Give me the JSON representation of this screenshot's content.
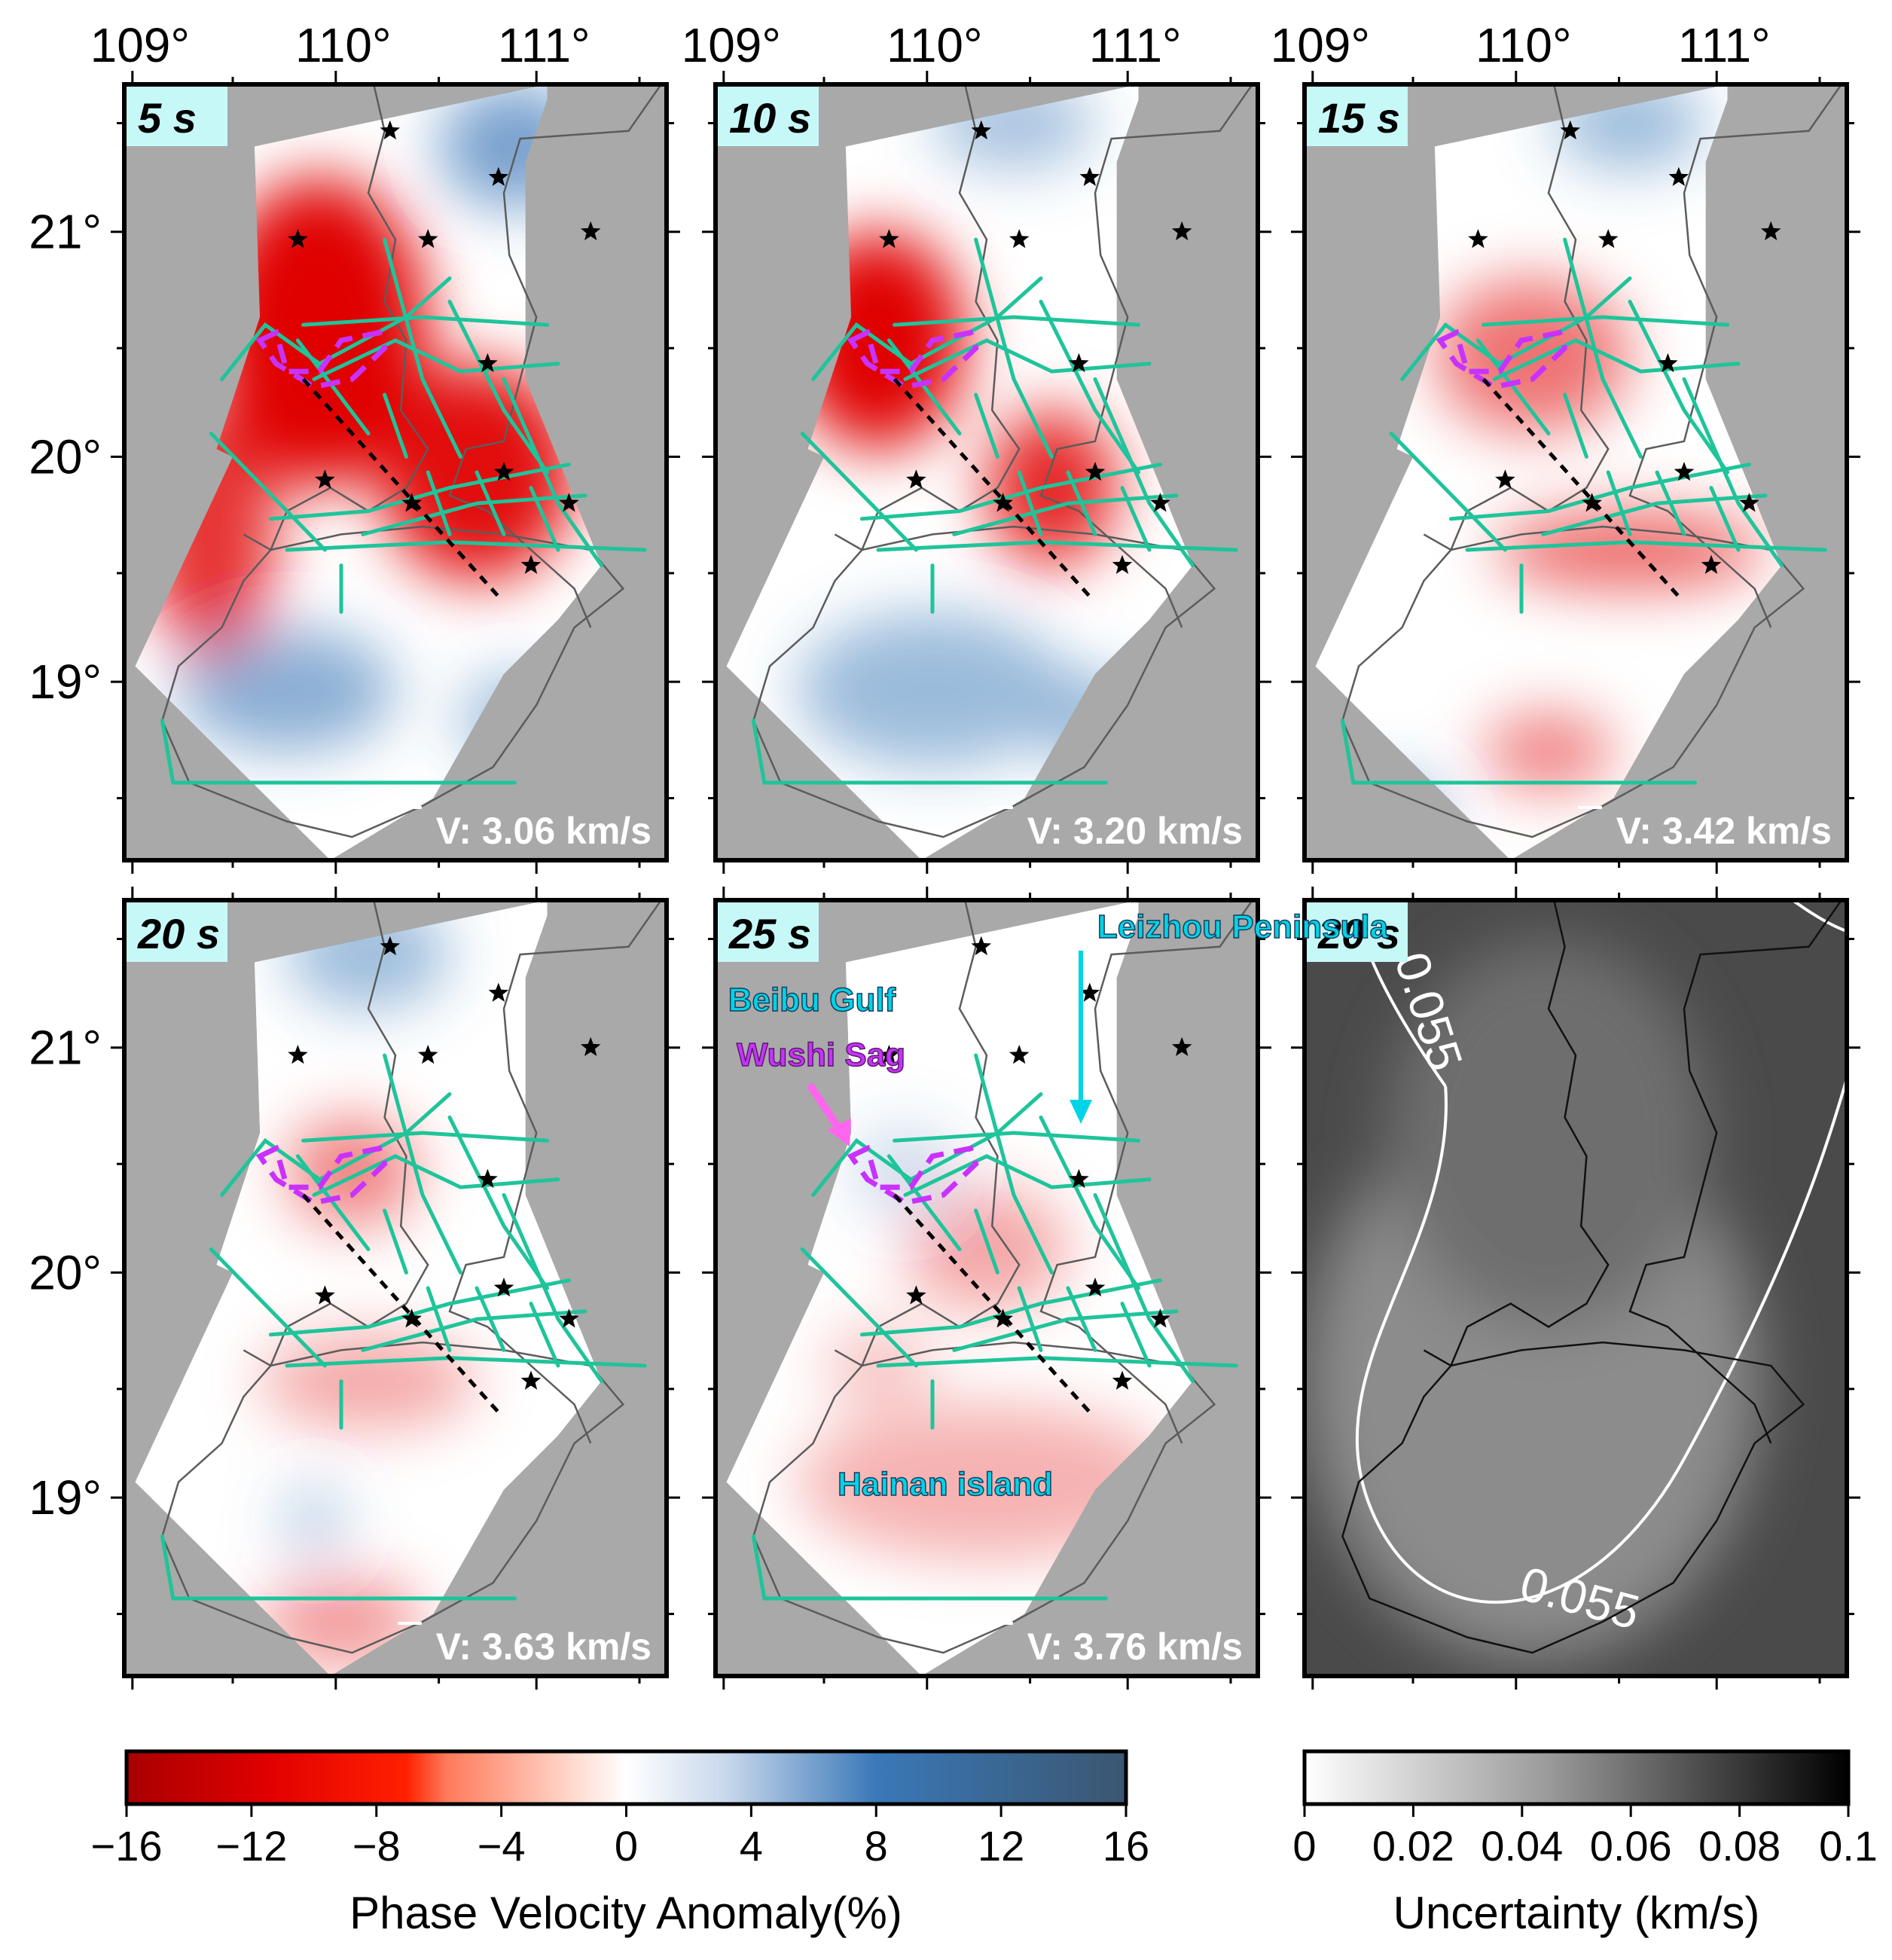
{
  "lon_ticks": [
    "109°",
    "110°",
    "111°"
  ],
  "lat_ticks": [
    "21°",
    "20°",
    "19°"
  ],
  "panels": [
    {
      "id": "p5",
      "period": "5 s",
      "mean_velocity": "V: 3.06 km/s",
      "map_type": "anomaly"
    },
    {
      "id": "p10",
      "period": "10 s",
      "mean_velocity": "V: 3.20 km/s",
      "map_type": "anomaly"
    },
    {
      "id": "p15",
      "period": "15 s",
      "mean_velocity": "V: 3.42 km/s",
      "map_type": "anomaly"
    },
    {
      "id": "p20",
      "period": "20 s",
      "mean_velocity": "V: 3.63 km/s",
      "map_type": "anomaly"
    },
    {
      "id": "p25",
      "period": "25 s",
      "mean_velocity": "V: 3.76 km/s",
      "map_type": "anomaly"
    },
    {
      "id": "pu",
      "period": "20 s",
      "mean_velocity": "",
      "map_type": "uncertainty"
    }
  ],
  "annotations": {
    "leizhou": "Leizhou Peninsula",
    "beibu": "Beibu Gulf",
    "wushi": "Wushi Sag",
    "hainan": "Hainan island"
  },
  "contour_labels": [
    "0.055",
    "0.055"
  ],
  "colorbars": {
    "anomaly": {
      "title": "Phase Velocity Anomaly(%)",
      "ticks": [
        "−16",
        "−12",
        "−8",
        "−4",
        "0",
        "4",
        "8",
        "12",
        "16"
      ],
      "range": [
        -16,
        16
      ]
    },
    "uncertainty": {
      "title": "Uncertainty (km/s)",
      "ticks": [
        "0",
        "0.02",
        "0.04",
        "0.06",
        "0.08",
        "0.1"
      ],
      "range": [
        0,
        0.1
      ]
    }
  },
  "colors": {
    "red": "#e00000",
    "blue": "#3a78b8",
    "fault": "#1fc49a",
    "sag": "#c832ff",
    "cyan_label": "#00d4e6",
    "background_gray": "#a9a9a9",
    "label_box": "#c6f8f8"
  }
}
